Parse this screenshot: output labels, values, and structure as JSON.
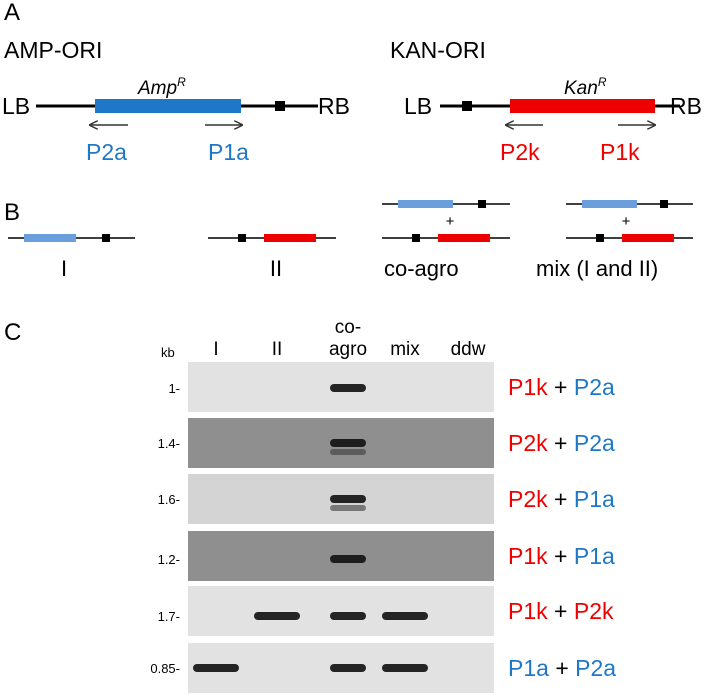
{
  "colors": {
    "amp": "#1f77c8",
    "ampLight": "#6a9fdc",
    "kan": "#ee0000",
    "black": "#000000",
    "gelLight": "#e2e2e2",
    "gelMid": "#d4d4d4",
    "gelDark": "#8f8f8f"
  },
  "panelA": {
    "label": "A",
    "amp": {
      "title": "AMP-ORI",
      "lb": "LB",
      "rb": "RB",
      "gene": "Amp",
      "gene_sup": "R",
      "primer_left": "P2a",
      "primer_right": "P1a"
    },
    "kan": {
      "title": "KAN-ORI",
      "lb": "LB",
      "rb": "RB",
      "gene": "Kan",
      "gene_sup": "R",
      "primer_left": "P2k",
      "primer_right": "P1k"
    }
  },
  "panelB": {
    "label": "B",
    "items": [
      {
        "label": "I"
      },
      {
        "label": "II"
      },
      {
        "label": "co-agro",
        "plus": "+"
      },
      {
        "label": "mix (I and II)",
        "plus": "+"
      }
    ]
  },
  "panelC": {
    "label": "C",
    "kb_label": "kb",
    "lanes": [
      "I",
      "II",
      "co-",
      "agro",
      "mix",
      "ddw"
    ],
    "rows": [
      {
        "size": "1-",
        "p1": "P1k",
        "p2": "P2a",
        "bands": [
          0,
          0,
          1,
          0,
          0
        ]
      },
      {
        "size": "1.4-",
        "p1": "P2k",
        "p2": "P2a",
        "bands": [
          0,
          0,
          1,
          0,
          0
        ]
      },
      {
        "size": "1.6-",
        "p1": "P2k",
        "p2": "P1a",
        "bands": [
          0,
          0,
          1,
          0,
          0
        ]
      },
      {
        "size": "1.2-",
        "p1": "P1k",
        "p2": "P1a",
        "bands": [
          0,
          0,
          1,
          0,
          0
        ]
      },
      {
        "size": "1.7-",
        "p1": "P1k",
        "p2": "P2k",
        "bands": [
          0,
          1,
          1,
          1,
          0
        ]
      },
      {
        "size": "0.85-",
        "p1": "P1a",
        "p2": "P2a",
        "bands": [
          1,
          0,
          1,
          1,
          0
        ]
      }
    ],
    "plus": "+"
  }
}
